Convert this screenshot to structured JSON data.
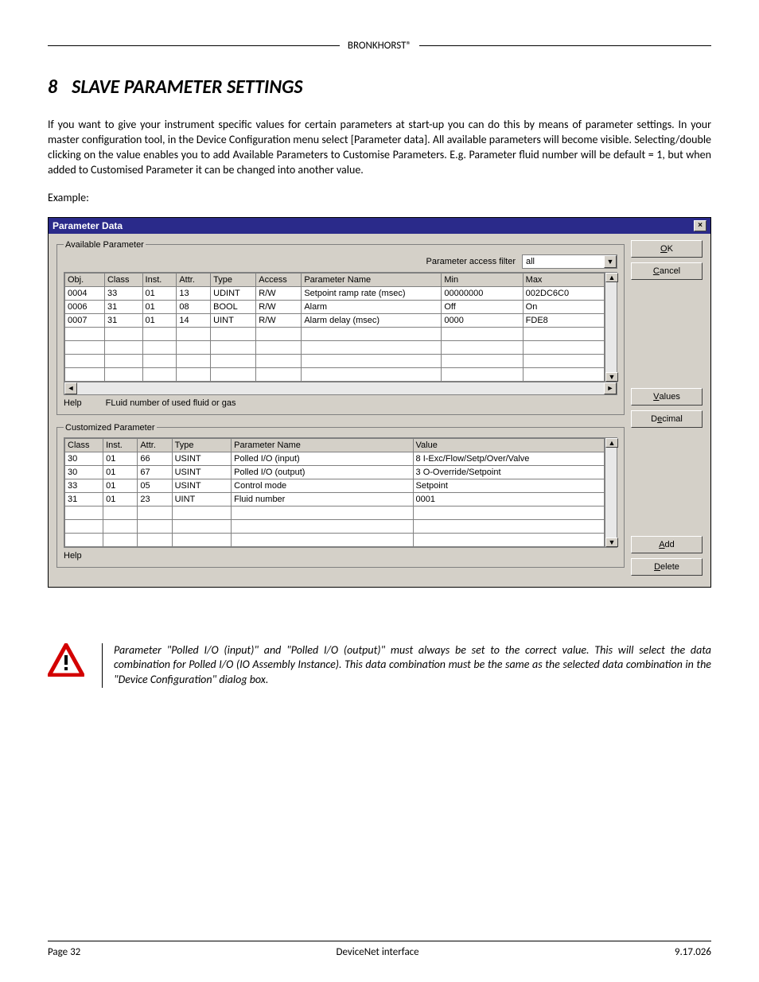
{
  "header": {
    "brand": "BRONKHORST®"
  },
  "chapter": {
    "number": "8",
    "title": "SLAVE PARAMETER SETTINGS"
  },
  "paragraph": "If you want to give your instrument specific values for certain parameters at start-up you can do this by means of parameter settings.  In your master configuration tool, in the Device Configuration menu select [Parameter data]. All available parameters will become visible. Selecting/double clicking on the value enables you to add Available Parameters to Customise Parameters. E.g. Parameter fluid number will be default = 1, but when added to Customised Parameter it can be changed into another value.",
  "example_label": "Example:",
  "dialog": {
    "title": "Parameter Data",
    "close_glyph": "×",
    "buttons": {
      "ok": "OK",
      "cancel": "Cancel",
      "values": "Values",
      "decimal": "Decimal",
      "add": "Add",
      "delete": "Delete"
    },
    "available": {
      "legend": "Available Parameter",
      "filter_label": "Parameter access filter",
      "filter_value": "all",
      "columns": [
        "Obj.",
        "Class",
        "Inst.",
        "Attr.",
        "Type",
        "Access",
        "Parameter Name",
        "Min",
        "Max"
      ],
      "col_widths": [
        "42px",
        "40px",
        "36px",
        "36px",
        "48px",
        "48px",
        "148px",
        "86px",
        "86px"
      ],
      "rows": [
        [
          "0004",
          "33",
          "01",
          "13",
          "UDINT",
          "R/W",
          "Setpoint ramp rate (msec)",
          "00000000",
          "002DC6C0"
        ],
        [
          "0006",
          "31",
          "01",
          "08",
          "BOOL",
          "R/W",
          "Alarm",
          "Off",
          "On"
        ],
        [
          "0007",
          "31",
          "01",
          "14",
          "UINT",
          "R/W",
          "Alarm delay (msec)",
          "0000",
          "FDE8"
        ]
      ],
      "empty_rows": 4,
      "help_label": "Help",
      "help_text": "FLuid number of used fluid or gas"
    },
    "customized": {
      "legend": "Customized Parameter",
      "columns": [
        "Class",
        "Inst.",
        "Attr.",
        "Type",
        "Parameter Name",
        "Value"
      ],
      "col_widths": [
        "40px",
        "36px",
        "36px",
        "62px",
        "190px",
        "200px"
      ],
      "rows": [
        [
          "30",
          "01",
          "66",
          "USINT",
          "Polled I/O (input)",
          "8 I-Exc/Flow/Setp/Over/Valve"
        ],
        [
          "30",
          "01",
          "67",
          "USINT",
          "Polled I/O (output)",
          "3 O-Override/Setpoint"
        ],
        [
          "33",
          "01",
          "05",
          "USINT",
          "Control mode",
          "Setpoint"
        ],
        [
          "31",
          "01",
          "23",
          "UINT",
          "Fluid number",
          "0001"
        ]
      ],
      "empty_rows": 3,
      "help_label": "Help"
    }
  },
  "warning": {
    "text": "Parameter \"Polled I/O (input)\" and \"Polled I/O (output)\" must always be set to the correct value. This will select the data combination for Polled I/O (IO Assembly Instance).  This data combination must be the same as the selected data combination in the \"Device Configuration\" dialog box.",
    "colors": {
      "triangle": "#d30000",
      "border": "#000"
    }
  },
  "footer": {
    "page": "Page 32",
    "center": "DeviceNet interface",
    "doc": "9.17.026"
  },
  "glyphs": {
    "up": "▲",
    "down": "▼",
    "left": "◄",
    "right": "►"
  }
}
